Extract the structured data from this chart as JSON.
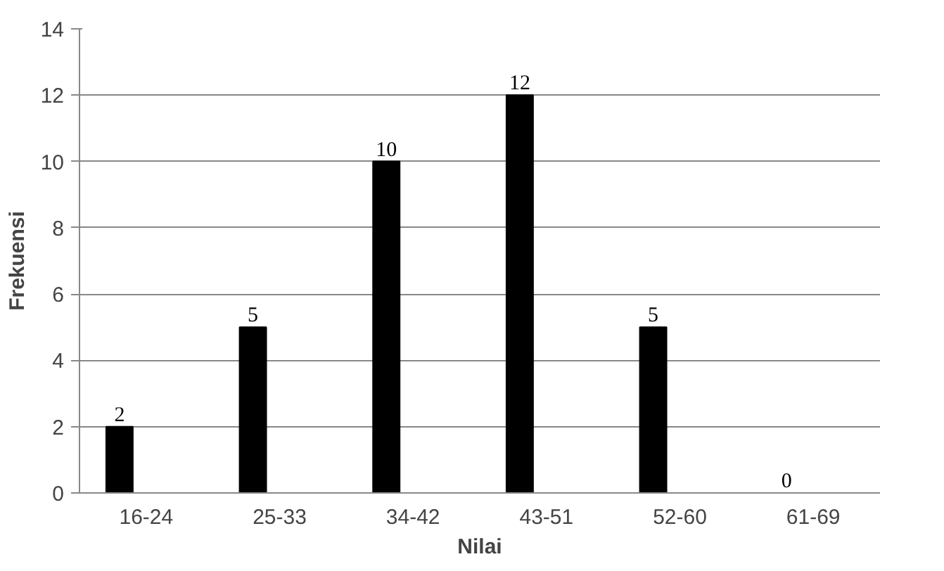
{
  "chart_data": {
    "type": "bar",
    "xlabel": "Nilai",
    "ylabel": "Frekuensi",
    "categories": [
      "16-24",
      "25-33",
      "34-42",
      "43-51",
      "52-60",
      "61-69"
    ],
    "values": [
      2,
      5,
      10,
      12,
      5,
      0
    ],
    "color": "#000000",
    "ylim": [
      0,
      14
    ],
    "yticks": [
      0,
      2,
      4,
      6,
      8,
      10,
      12,
      14
    ],
    "grid": "y",
    "data_labels": true
  }
}
